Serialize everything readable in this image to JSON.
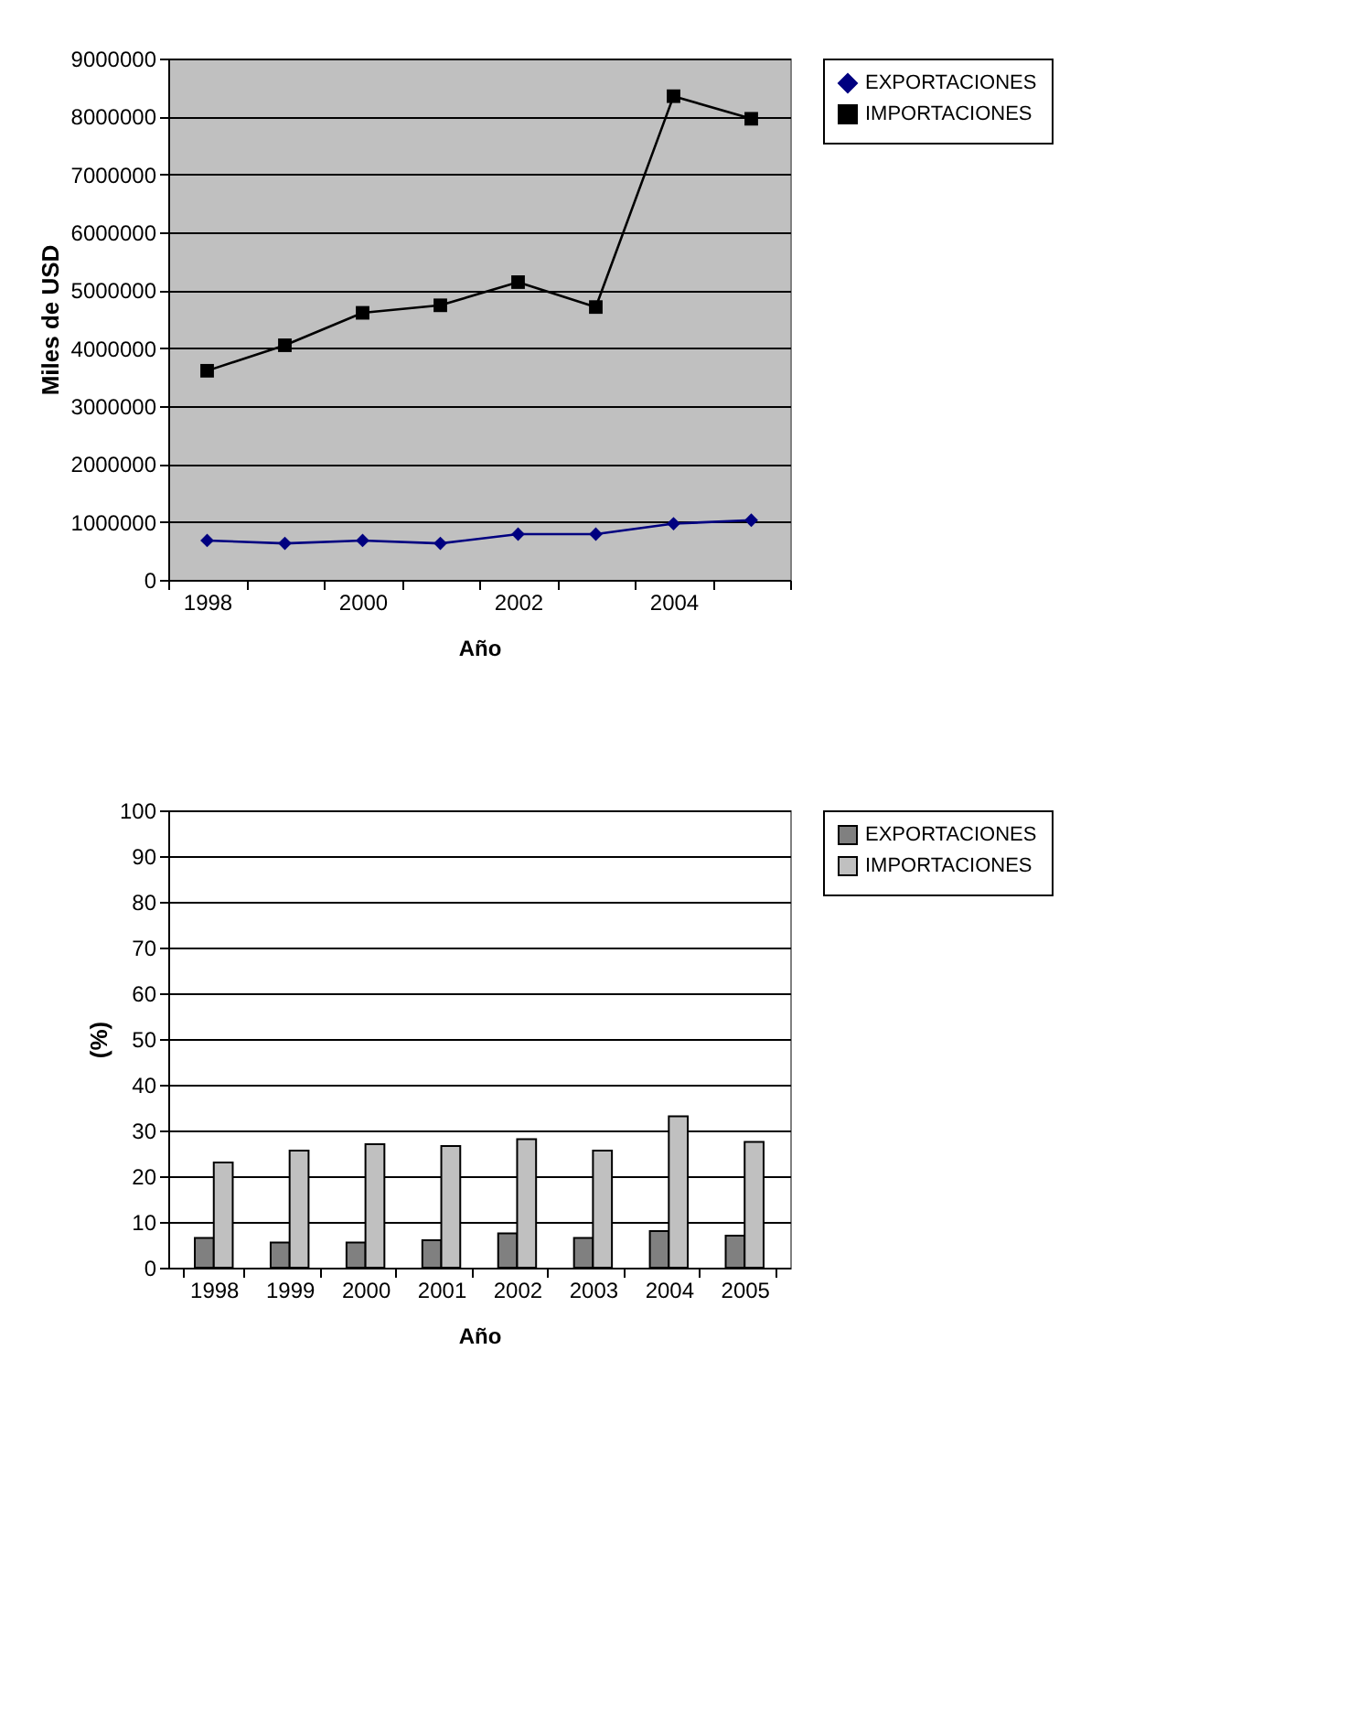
{
  "chart_data": [
    {
      "type": "line",
      "xlabel": "Año",
      "ylabel": "Miles de USD",
      "categories": [
        "1998",
        null,
        "2000",
        null,
        "2002",
        null,
        "2004",
        null
      ],
      "ylim": [
        0,
        9000000
      ],
      "yticks": [
        0,
        1000000,
        2000000,
        3000000,
        4000000,
        5000000,
        6000000,
        7000000,
        8000000,
        9000000
      ],
      "grid": "y",
      "legend": "right",
      "line_style": "solid",
      "series": [
        {
          "name": "EXPORTACIONES",
          "color": "#000080",
          "marker": "diamond",
          "values": [
            680000,
            630000,
            680000,
            630000,
            790000,
            790000,
            970000,
            1030000
          ]
        },
        {
          "name": "IMPORTACIONES",
          "color": "#000000",
          "marker": "square",
          "values": [
            3610000,
            4050000,
            4610000,
            4740000,
            5140000,
            4710000,
            8350000,
            7960000
          ]
        }
      ]
    },
    {
      "type": "bar",
      "xlabel": "Año",
      "ylabel": "(%)",
      "categories": [
        "1998",
        "1999",
        "2000",
        "2001",
        "2002",
        "2003",
        "2004",
        "2005"
      ],
      "ylim": [
        0,
        100
      ],
      "yticks": [
        0,
        10,
        20,
        30,
        40,
        50,
        60,
        70,
        80,
        90,
        100
      ],
      "grid": "y",
      "legend": "right",
      "series": [
        {
          "name": "EXPORTACIONES",
          "color": "#808080",
          "values": [
            6.5,
            5.5,
            5.5,
            6.0,
            7.5,
            6.5,
            8.0,
            7.0
          ]
        },
        {
          "name": "IMPORTACIONES",
          "color": "#c0c0c0",
          "values": [
            23,
            25.6,
            27,
            26.6,
            28.1,
            25.6,
            33.1,
            27.5
          ]
        }
      ]
    }
  ]
}
